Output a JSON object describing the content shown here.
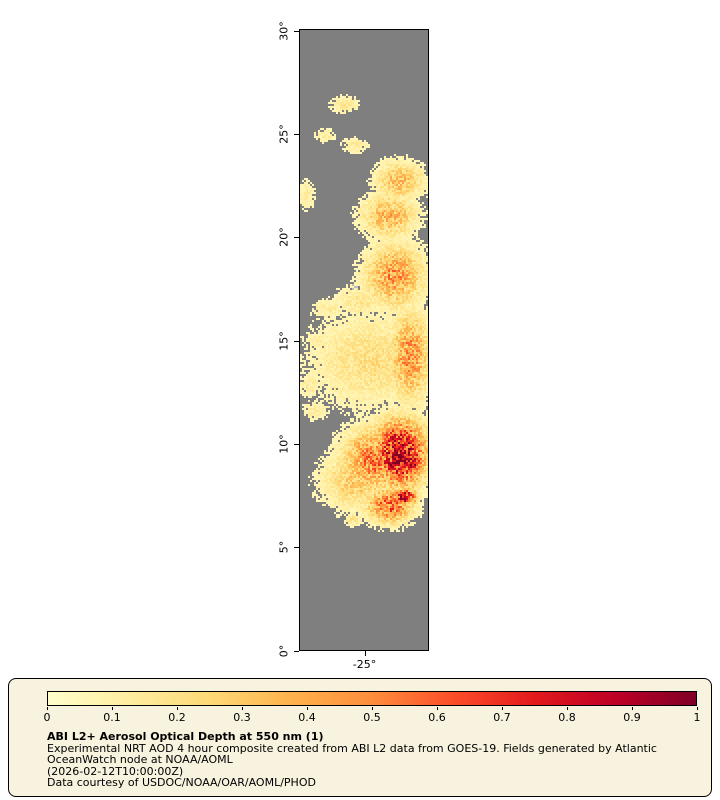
{
  "figure": {
    "legend_background": "#f8f3de",
    "caption": {
      "title": "ABI L2+ Aerosol Optical Depth at 550 nm (1)",
      "description_line1": "Experimental NRT AOD 4 hour composite created from ABI L2 data from GOES-19. Fields generated by Atlantic",
      "description_line2": "OceanWatch node at NOAA/AOML",
      "timestamp": "(2026-02-12T10:00:00Z)",
      "credit": "Data courtesy of USDOC/NOAA/OAR/AOML/PHOD"
    }
  },
  "chart_data": {
    "type": "heatmap",
    "title": "ABI L2+ Aerosol Optical Depth at 550 nm (1)",
    "colormap": "YlOrRd",
    "colormap_stops": [
      "#ffffcc",
      "#ffeda0",
      "#fed976",
      "#feb24c",
      "#fd8d3c",
      "#fc4e2a",
      "#e31a1c",
      "#bd0026",
      "#800026"
    ],
    "value_range": [
      0,
      1
    ],
    "colorbar_ticks": [
      {
        "value": 0,
        "label": "0"
      },
      {
        "value": 0.1,
        "label": "0.1"
      },
      {
        "value": 0.2,
        "label": "0.2"
      },
      {
        "value": 0.3,
        "label": "0.3"
      },
      {
        "value": 0.4,
        "label": "0.4"
      },
      {
        "value": 0.5,
        "label": "0.5"
      },
      {
        "value": 0.6,
        "label": "0.6"
      },
      {
        "value": 0.7,
        "label": "0.7"
      },
      {
        "value": 0.8,
        "label": "0.8"
      },
      {
        "value": 0.9,
        "label": "0.9"
      },
      {
        "value": 1,
        "label": "1"
      }
    ],
    "no_data_color": "#7f7f7f",
    "cloud_color": "#bdbdbd",
    "lat_axis": {
      "min": 0,
      "max": 30,
      "ticks": [
        {
          "value": 30,
          "label": "30°"
        },
        {
          "value": 25,
          "label": "25°"
        },
        {
          "value": 20,
          "label": "20°"
        },
        {
          "value": 15,
          "label": "15°"
        },
        {
          "value": 10,
          "label": "10°"
        },
        {
          "value": 5,
          "label": "5°"
        },
        {
          "value": 0,
          "label": "0°"
        }
      ]
    },
    "lon_ticks": [
      {
        "u": 0.5,
        "label": "-25°"
      }
    ],
    "aod_plumes": [
      {
        "u": 0.35,
        "lat": 26.4,
        "ru": 0.11,
        "rlat": 0.45,
        "aod": 0.15
      },
      {
        "u": 0.2,
        "lat": 24.9,
        "ru": 0.08,
        "rlat": 0.35,
        "aod": 0.13
      },
      {
        "u": 0.43,
        "lat": 24.4,
        "ru": 0.1,
        "rlat": 0.4,
        "aod": 0.14
      },
      {
        "u": 0.78,
        "lat": 22.7,
        "ru": 0.18,
        "rlat": 0.9,
        "aod": 0.32
      },
      {
        "u": 0.7,
        "lat": 21.0,
        "ru": 0.2,
        "rlat": 1.0,
        "aod": 0.35
      },
      {
        "u": 0.05,
        "lat": 22.0,
        "ru": 0.07,
        "rlat": 0.7,
        "aod": 0.13
      },
      {
        "u": 0.74,
        "lat": 18.1,
        "ru": 0.22,
        "rlat": 1.45,
        "aod": 0.42
      },
      {
        "u": 0.47,
        "lat": 16.9,
        "ru": 0.2,
        "rlat": 0.75,
        "aod": 0.16
      },
      {
        "u": 0.23,
        "lat": 16.5,
        "ru": 0.15,
        "rlat": 0.5,
        "aod": 0.13
      },
      {
        "u": 0.55,
        "lat": 14.0,
        "ru": 0.45,
        "rlat": 2.2,
        "aod": 0.2
      },
      {
        "u": 0.86,
        "lat": 14.2,
        "ru": 0.15,
        "rlat": 2.0,
        "aod": 0.45
      },
      {
        "u": 0.15,
        "lat": 15.0,
        "ru": 0.12,
        "rlat": 0.5,
        "aod": 0.13
      },
      {
        "u": 0.08,
        "lat": 12.8,
        "ru": 0.09,
        "rlat": 0.6,
        "aod": 0.13
      },
      {
        "u": 0.12,
        "lat": 11.6,
        "ru": 0.1,
        "rlat": 0.5,
        "aod": 0.13
      },
      {
        "u": 0.78,
        "lat": 9.5,
        "ru": 0.2,
        "rlat": 1.55,
        "aod": 0.85
      },
      {
        "u": 0.86,
        "lat": 9.2,
        "ru": 0.09,
        "rlat": 0.6,
        "aod": 1.0
      },
      {
        "u": 0.58,
        "lat": 9.2,
        "ru": 0.24,
        "rlat": 1.45,
        "aod": 0.5
      },
      {
        "u": 0.46,
        "lat": 8.2,
        "ru": 0.28,
        "rlat": 1.35,
        "aod": 0.28
      },
      {
        "u": 0.7,
        "lat": 7.0,
        "ru": 0.17,
        "rlat": 0.8,
        "aod": 0.55
      },
      {
        "u": 0.82,
        "lat": 7.4,
        "ru": 0.09,
        "rlat": 0.4,
        "aod": 0.8
      },
      {
        "u": 0.42,
        "lat": 6.3,
        "ru": 0.07,
        "rlat": 0.3,
        "aod": 0.18
      }
    ],
    "cloud_patches": [
      {
        "u": 0.43,
        "lat": 17.5,
        "ru": 0.07,
        "rlat": 0.3
      },
      {
        "u": 0.56,
        "lat": 9.2,
        "ru": 0.06,
        "rlat": 0.28
      },
      {
        "u": 0.33,
        "lat": 13.6,
        "ru": 0.05,
        "rlat": 0.22
      }
    ]
  }
}
